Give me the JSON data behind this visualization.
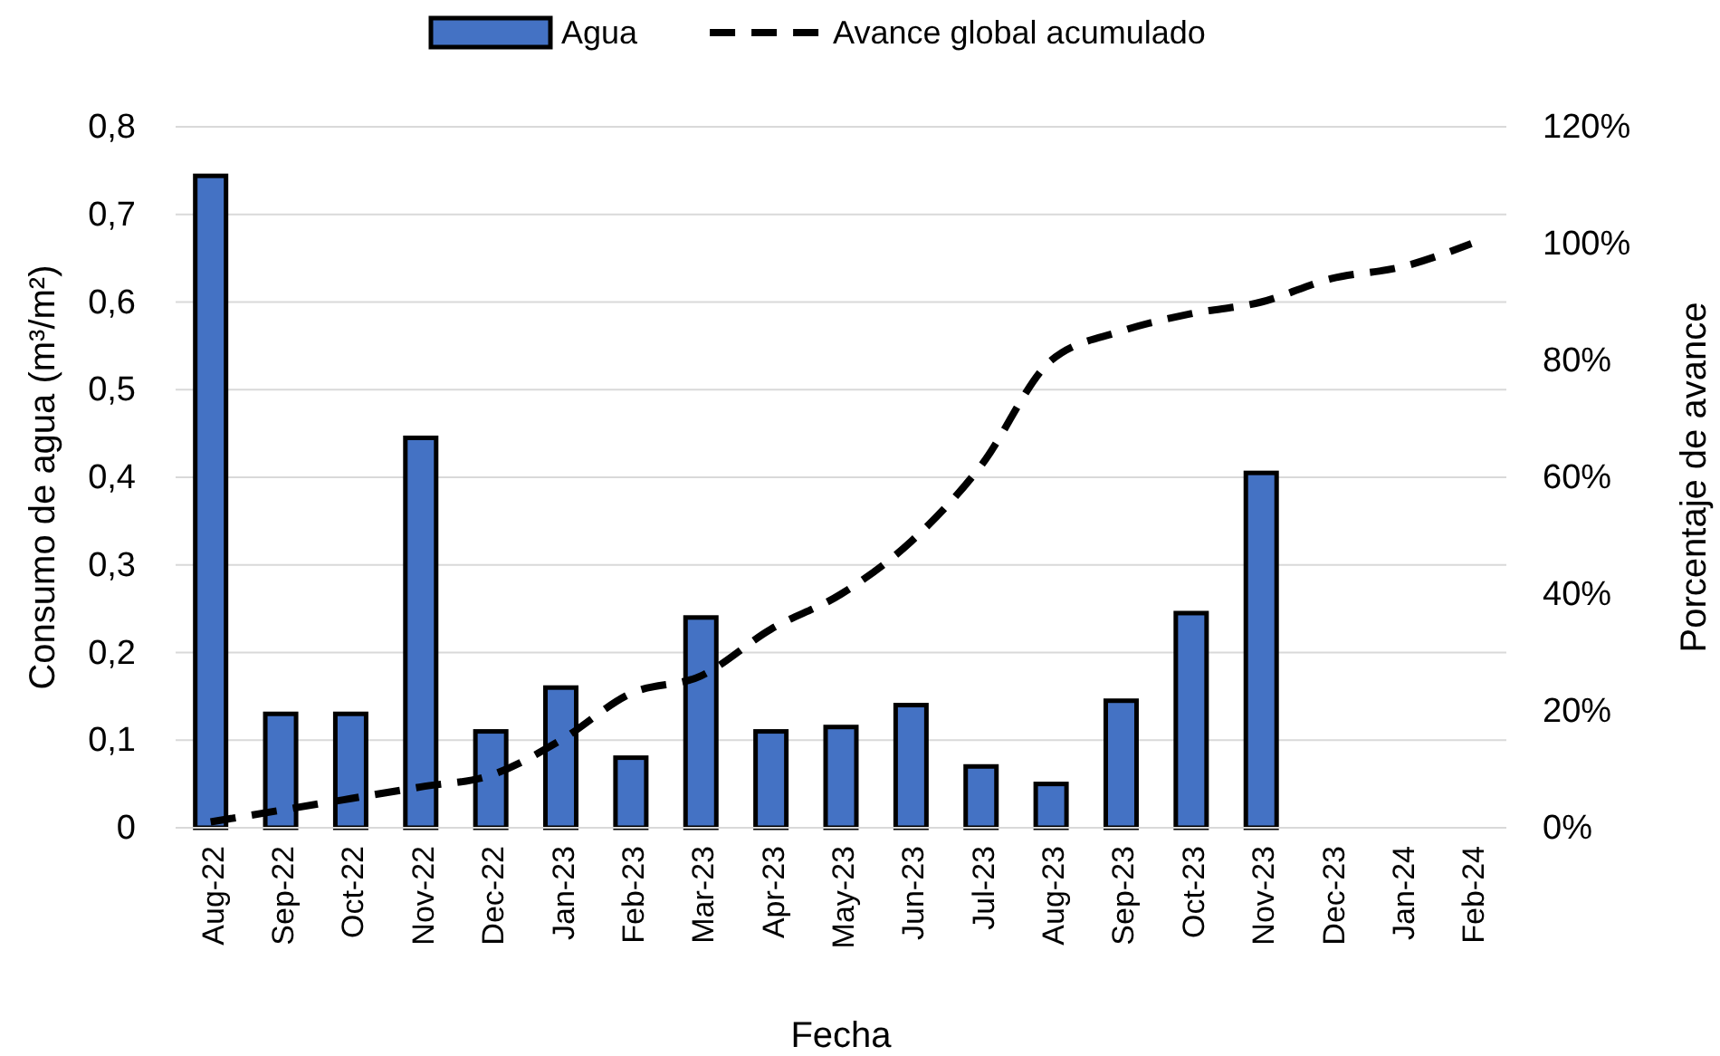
{
  "chart_data": {
    "type": "bar",
    "xlabel": "Fecha",
    "ylabel": "Consumo de agua (m³/m²)",
    "y2label": "Porcentaje de avance",
    "categories": [
      "Aug-22",
      "Sep-22",
      "Oct-22",
      "Nov-22",
      "Dec-22",
      "Jan-23",
      "Feb-23",
      "Mar-23",
      "Apr-23",
      "May-23",
      "Jun-23",
      "Jul-23",
      "Aug-23",
      "Sep-23",
      "Oct-23",
      "Nov-23",
      "Dec-23",
      "Jan-24",
      "Feb-24"
    ],
    "series": [
      {
        "name": "Agua",
        "color": "#4472c4",
        "values": [
          0.744,
          0.13,
          0.13,
          0.445,
          0.11,
          0.16,
          0.08,
          0.24,
          0.11,
          0.115,
          0.14,
          0.07,
          0.05,
          0.145,
          0.245,
          0.405,
          null,
          null,
          null
        ]
      },
      {
        "name": "Avance global acumulado",
        "type": "line",
        "axis": "y2",
        "color": "#000000",
        "line_style": "dashed",
        "marker": "none",
        "values": [
          1,
          3,
          5,
          7,
          9,
          15,
          23,
          26,
          34,
          40,
          49,
          62,
          80,
          85,
          88,
          90,
          94,
          96,
          100
        ]
      }
    ],
    "ylim": [
      0,
      0.8
    ],
    "yticks": [
      0,
      {
        "value": 0.1,
        "label": "0,1"
      },
      {
        "value": 0.2,
        "label": "0,2"
      },
      {
        "value": 0.3,
        "label": "0,3"
      },
      {
        "value": 0.4,
        "label": "0,4"
      },
      {
        "value": 0.5,
        "label": "0,5"
      },
      {
        "value": 0.6,
        "label": "0,6"
      },
      {
        "value": 0.7,
        "label": "0,7"
      },
      {
        "value": 0.8,
        "label": "0,8"
      }
    ],
    "y2lim": [
      0,
      120
    ],
    "y2ticks": [
      {
        "value": 0,
        "label": "0%"
      },
      {
        "value": 20,
        "label": "20%"
      },
      {
        "value": 40,
        "label": "40%"
      },
      {
        "value": 60,
        "label": "60%"
      },
      {
        "value": 80,
        "label": "80%"
      },
      {
        "value": 100,
        "label": "100%"
      },
      {
        "value": 120,
        "label": "120%"
      }
    ],
    "grid": "y",
    "legend": "top"
  }
}
